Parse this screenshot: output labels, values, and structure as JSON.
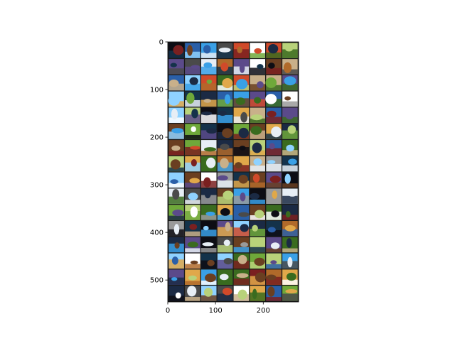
{
  "chart_data": {
    "type": "heatmap",
    "description": "",
    "grid": {
      "rows": 16,
      "cols": 8,
      "cell_size_data_units": 34,
      "gap_data_units": 2
    },
    "x_ticks": [
      0,
      100,
      200
    ],
    "y_ticks": [
      0,
      100,
      200,
      300,
      400,
      500
    ],
    "xlim": [
      0,
      274
    ],
    "ylim": [
      546,
      0
    ],
    "x_tick_labels": [
      "0",
      "100",
      "200"
    ],
    "y_tick_labels": [
      "0",
      "100",
      "200",
      "300",
      "400",
      "500"
    ],
    "palette": [
      "#0d0d14",
      "#1b2a44",
      "#2a5fa8",
      "#3aa0e6",
      "#8fd2ff",
      "#e7eef5",
      "#ffffff",
      "#3a6b1f",
      "#6fa83a",
      "#b8d27a",
      "#6a3f21",
      "#b06a2a",
      "#e0a84a",
      "#7a2020",
      "#d04a2a",
      "#4a4a4a",
      "#9a9a9a",
      "#c9b08a",
      "#14324a",
      "#5b4a8a"
    ]
  }
}
